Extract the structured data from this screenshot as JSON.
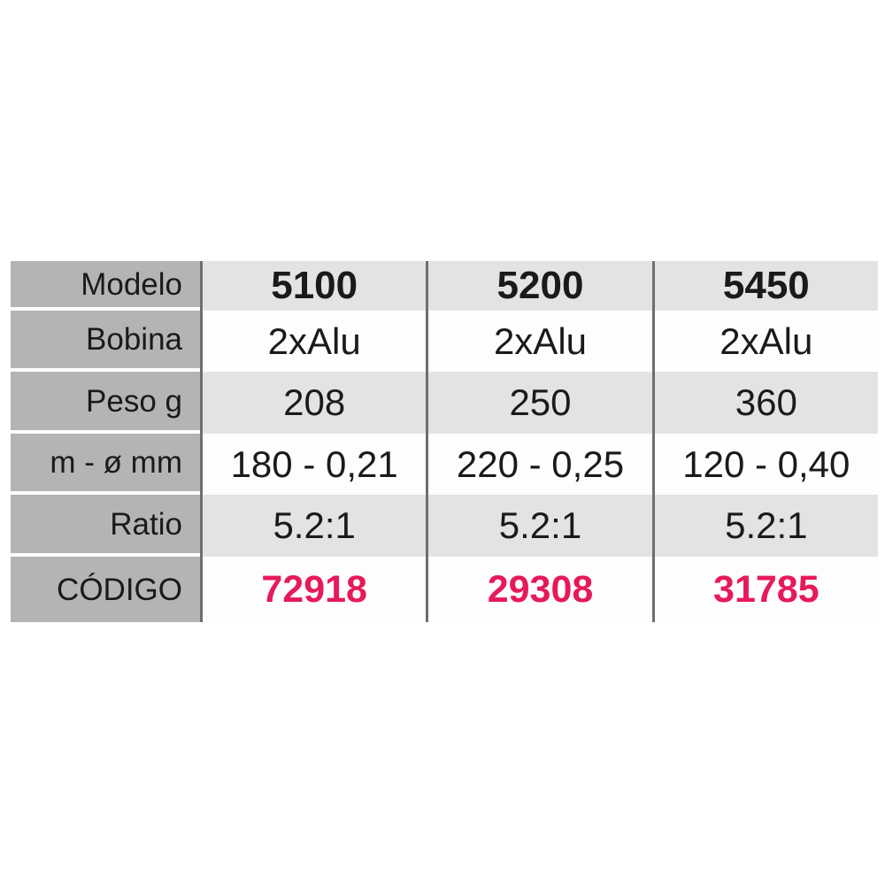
{
  "chart_data": {
    "type": "table",
    "title": "",
    "columns": [
      "Modelo",
      "5100",
      "5200",
      "5450"
    ],
    "rows": [
      {
        "label": "Modelo",
        "values": [
          "5100",
          "5200",
          "5450"
        ]
      },
      {
        "label": "Bobina",
        "values": [
          "2xAlu",
          "2xAlu",
          "2xAlu"
        ]
      },
      {
        "label": "Peso g",
        "values": [
          "208",
          "250",
          "360"
        ]
      },
      {
        "label": "m - ø mm",
        "values": [
          "180 - 0,21",
          "220 - 0,25",
          "120 - 0,40"
        ]
      },
      {
        "label": "Ratio",
        "values": [
          "5.2:1",
          "5.2:1",
          "5.2:1"
        ]
      },
      {
        "label": "CÓDIGO",
        "values": [
          "72918",
          "29308",
          "31785"
        ]
      }
    ]
  },
  "table": {
    "rows": [
      {
        "label": "Modelo",
        "values": [
          "5100",
          "5200",
          "5450"
        ]
      },
      {
        "label": "Bobina",
        "values": [
          "2xAlu",
          "2xAlu",
          "2xAlu"
        ]
      },
      {
        "label": "Peso g",
        "values": [
          "208",
          "250",
          "360"
        ]
      },
      {
        "label": "m - ø mm",
        "values": [
          "180 - 0,21",
          "220 - 0,25",
          "120 - 0,40"
        ]
      },
      {
        "label": "Ratio",
        "values": [
          "5.2:1",
          "5.2:1",
          "5.2:1"
        ]
      },
      {
        "label": "CÓDIGO",
        "values": [
          "72918",
          "29308",
          "31785"
        ]
      }
    ],
    "colors": {
      "label_bg": "#b4b4b4",
      "row_alt_bg": "#e3e3e3",
      "row_white_bg": "#fdfdfd",
      "divider": "#6e6e6e",
      "text": "#1a1a1a",
      "code_accent": "#e6195a"
    }
  }
}
